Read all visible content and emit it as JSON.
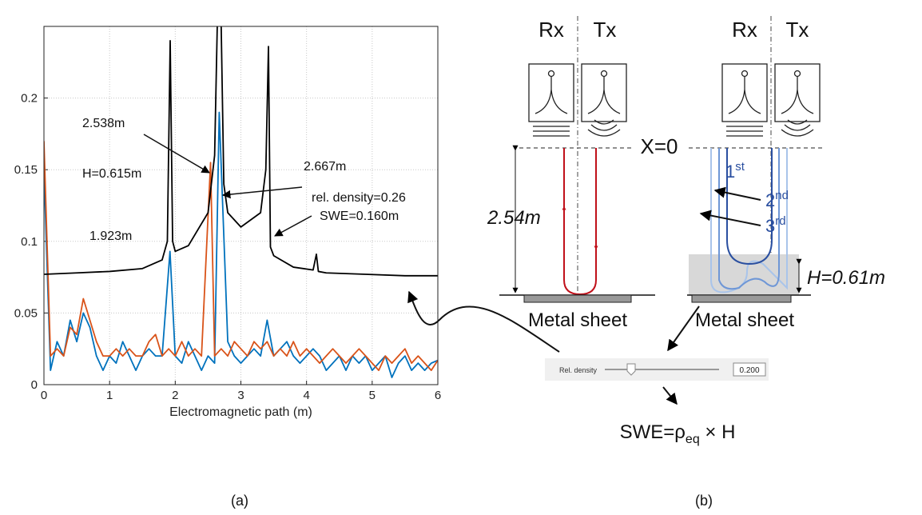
{
  "chart_data": {
    "type": "line",
    "xlabel": "Electromagnetic path (m)",
    "xlim": [
      0,
      6
    ],
    "xticks": [
      0,
      1,
      2,
      3,
      4,
      5,
      6
    ],
    "ylim": [
      0,
      0.25
    ],
    "yticks": [
      0,
      0.05,
      0.1,
      0.15,
      0.2
    ],
    "grid": true,
    "series": [
      {
        "color": "#000000",
        "x": [
          0,
          0.5,
          1,
          1.5,
          1.8,
          1.88,
          1.923,
          1.96,
          2.0,
          2.2,
          2.5,
          2.6,
          2.64,
          2.667,
          2.7,
          2.74,
          2.8,
          3.0,
          3.3,
          3.38,
          3.42,
          3.45,
          3.5,
          3.8,
          4.1,
          4.15,
          4.18,
          4.3,
          4.9,
          5.5,
          6
        ],
        "values": [
          0.077,
          0.078,
          0.079,
          0.081,
          0.087,
          0.1,
          0.24,
          0.1,
          0.093,
          0.097,
          0.12,
          0.16,
          0.25,
          0.3,
          0.25,
          0.14,
          0.12,
          0.11,
          0.12,
          0.15,
          0.236,
          0.096,
          0.09,
          0.082,
          0.08,
          0.091,
          0.079,
          0.078,
          0.077,
          0.076,
          0.076
        ]
      },
      {
        "color": "#0072bd",
        "x": [
          0,
          0.1,
          0.2,
          0.3,
          0.4,
          0.5,
          0.6,
          0.7,
          0.8,
          0.9,
          1.0,
          1.1,
          1.2,
          1.3,
          1.4,
          1.5,
          1.6,
          1.7,
          1.8,
          1.92,
          2.0,
          2.1,
          2.2,
          2.3,
          2.4,
          2.5,
          2.6,
          2.67,
          2.8,
          2.9,
          3.0,
          3.1,
          3.2,
          3.3,
          3.4,
          3.5,
          3.6,
          3.7,
          3.8,
          3.9,
          4.0,
          4.1,
          4.2,
          4.3,
          4.4,
          4.5,
          4.6,
          4.7,
          4.8,
          4.9,
          5.0,
          5.1,
          5.2,
          5.3,
          5.4,
          5.5,
          5.6,
          5.7,
          5.8,
          5.9,
          6.0
        ],
        "values": [
          0.15,
          0.01,
          0.03,
          0.02,
          0.045,
          0.03,
          0.05,
          0.04,
          0.02,
          0.01,
          0.02,
          0.015,
          0.03,
          0.02,
          0.01,
          0.02,
          0.025,
          0.02,
          0.02,
          0.093,
          0.02,
          0.015,
          0.03,
          0.02,
          0.01,
          0.02,
          0.015,
          0.19,
          0.03,
          0.02,
          0.015,
          0.02,
          0.025,
          0.02,
          0.045,
          0.02,
          0.025,
          0.03,
          0.02,
          0.015,
          0.02,
          0.025,
          0.02,
          0.01,
          0.015,
          0.02,
          0.01,
          0.02,
          0.015,
          0.02,
          0.01,
          0.015,
          0.02,
          0.005,
          0.015,
          0.02,
          0.01,
          0.015,
          0.01,
          0.015,
          0.017
        ]
      },
      {
        "color": "#d95319",
        "x": [
          0,
          0.1,
          0.2,
          0.3,
          0.4,
          0.5,
          0.6,
          0.7,
          0.8,
          0.9,
          1.0,
          1.1,
          1.2,
          1.3,
          1.4,
          1.5,
          1.6,
          1.7,
          1.8,
          1.9,
          2.0,
          2.1,
          2.2,
          2.3,
          2.4,
          2.538,
          2.6,
          2.7,
          2.8,
          2.9,
          3.0,
          3.1,
          3.2,
          3.3,
          3.4,
          3.5,
          3.6,
          3.7,
          3.8,
          3.9,
          4.0,
          4.1,
          4.2,
          4.3,
          4.4,
          4.5,
          4.6,
          4.7,
          4.8,
          4.9,
          5.0,
          5.1,
          5.2,
          5.3,
          5.4,
          5.5,
          5.6,
          5.7,
          5.8,
          5.9,
          6.0
        ],
        "values": [
          0.17,
          0.02,
          0.025,
          0.02,
          0.04,
          0.035,
          0.06,
          0.045,
          0.03,
          0.02,
          0.02,
          0.025,
          0.02,
          0.025,
          0.02,
          0.02,
          0.03,
          0.035,
          0.02,
          0.025,
          0.02,
          0.03,
          0.02,
          0.025,
          0.02,
          0.155,
          0.02,
          0.025,
          0.02,
          0.03,
          0.025,
          0.02,
          0.03,
          0.025,
          0.03,
          0.02,
          0.025,
          0.02,
          0.03,
          0.02,
          0.025,
          0.02,
          0.015,
          0.02,
          0.025,
          0.02,
          0.015,
          0.02,
          0.025,
          0.02,
          0.015,
          0.01,
          0.02,
          0.015,
          0.02,
          0.025,
          0.015,
          0.02,
          0.015,
          0.01,
          0.017
        ]
      }
    ],
    "annotations": [
      "2.538m",
      "H=0.615m",
      "2.667m",
      "rel. density=0.26",
      "SWE=0.160m",
      "1.923m"
    ]
  },
  "diagram": {
    "antennas": [
      "Rx",
      "Tx",
      "Rx",
      "Tx"
    ],
    "reference": "X=0",
    "distance": "2.54m",
    "echoes": [
      {
        "base": "1",
        "sup": "st"
      },
      {
        "base": "2",
        "sup": "nd"
      },
      {
        "base": "3",
        "sup": "rd"
      }
    ],
    "snow_height": "H=0.61m",
    "plates": [
      "Metal sheet",
      "Metal sheet"
    ],
    "slider": {
      "label": "Rel. density",
      "value": "0.200"
    },
    "formula": {
      "pre": "SWE=ρ",
      "sub": "eq",
      "post": " × H"
    }
  },
  "panels": [
    "(a)",
    "(b)"
  ]
}
